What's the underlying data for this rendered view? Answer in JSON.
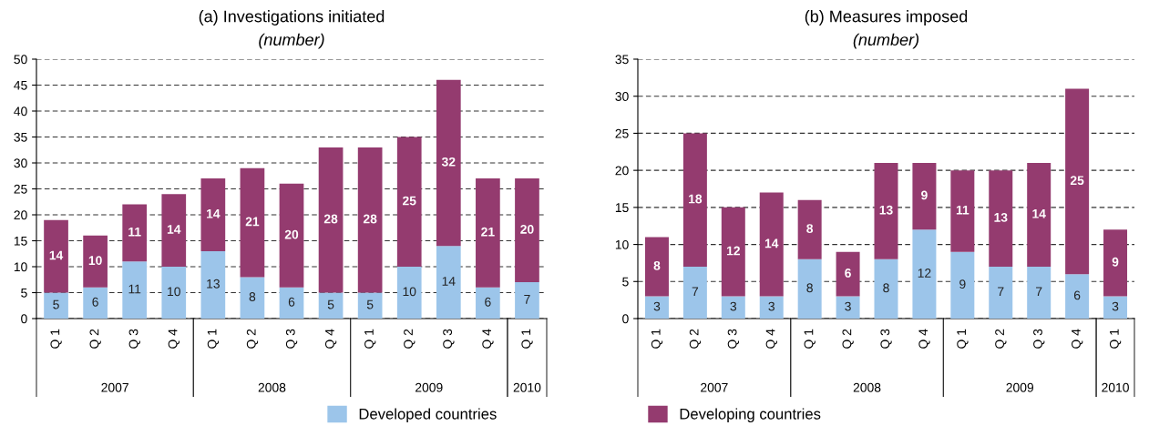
{
  "chart_data": [
    {
      "type": "bar",
      "stacked": true,
      "title": "(a) Investigations initiated",
      "subtitle": "(number)",
      "categories": [
        "Q 1",
        "Q 2",
        "Q 3",
        "Q 4",
        "Q 1",
        "Q 2",
        "Q 3",
        "Q 4",
        "Q 1",
        "Q 2",
        "Q 3",
        "Q 4",
        "Q 1"
      ],
      "series": [
        {
          "name": "Developed countries",
          "color": "#9cc5ea",
          "values": [
            5,
            6,
            11,
            10,
            13,
            8,
            6,
            5,
            5,
            10,
            14,
            6,
            7
          ]
        },
        {
          "name": "Developing countries",
          "color": "#943b6f",
          "values": [
            14,
            10,
            11,
            14,
            14,
            21,
            20,
            28,
            28,
            25,
            32,
            21,
            20
          ]
        }
      ],
      "annotations": [
        "2007",
        "2008",
        "2009",
        "2010"
      ],
      "ylim": [
        0,
        50
      ],
      "yticks": [
        0,
        5,
        10,
        15,
        20,
        25,
        30,
        35,
        40,
        45,
        50
      ],
      "grid": "y",
      "data_labels": true,
      "legend": "bottom"
    },
    {
      "type": "bar",
      "stacked": true,
      "title": "(b) Measures imposed",
      "subtitle": "(number)",
      "categories": [
        "Q 1",
        "Q 2",
        "Q 3",
        "Q 4",
        "Q 1",
        "Q 2",
        "Q 3",
        "Q 4",
        "Q 1",
        "Q 2",
        "Q 3",
        "Q 4",
        "Q 1"
      ],
      "series": [
        {
          "color": "#9cc5ea",
          "values": [
            3,
            7,
            3,
            3,
            8,
            3,
            8,
            12,
            9,
            7,
            7,
            6,
            3
          ]
        },
        {
          "color": "#943b6f",
          "values": [
            8,
            18,
            12,
            14,
            8,
            6,
            13,
            9,
            11,
            13,
            14,
            25,
            9
          ]
        }
      ],
      "annotations": [
        "2007",
        "2008",
        "2009",
        "2010"
      ],
      "ylim": [
        0,
        35
      ],
      "yticks": [
        0,
        5,
        10,
        15,
        20,
        25,
        30,
        35
      ],
      "grid": "y",
      "data_labels": true
    }
  ]
}
